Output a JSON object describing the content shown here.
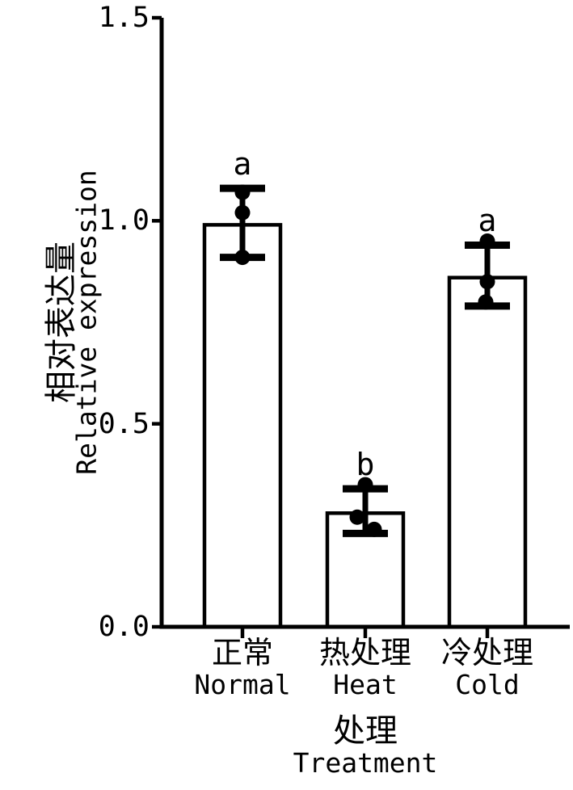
{
  "figure": {
    "background": "#ffffff",
    "ink": "#000000"
  },
  "chart_data": {
    "type": "bar",
    "title": "",
    "categories": [
      {
        "label_zh": "正常",
        "label_en": "Normal"
      },
      {
        "label_zh": "热处理",
        "label_en": "Heat"
      },
      {
        "label_zh": "冷处理",
        "label_en": "Cold"
      }
    ],
    "values": [
      0.99,
      0.28,
      0.86
    ],
    "error_low": [
      0.91,
      0.23,
      0.79
    ],
    "error_high": [
      1.08,
      0.34,
      0.94
    ],
    "points": [
      [
        {
          "v": 1.07,
          "dx": 0
        },
        {
          "v": 1.02,
          "dx": 0
        },
        {
          "v": 0.91,
          "dx": 0
        }
      ],
      [
        {
          "v": 0.35,
          "dx": 0
        },
        {
          "v": 0.27,
          "dx": -10
        },
        {
          "v": 0.24,
          "dx": 11
        }
      ],
      [
        {
          "v": 0.95,
          "dx": 0
        },
        {
          "v": 0.85,
          "dx": 0
        },
        {
          "v": 0.8,
          "dx": -2
        }
      ]
    ],
    "sig_letters": [
      "a",
      "b",
      "a"
    ],
    "ylabel_zh": "相对表达量",
    "ylabel_en": "Relative expression",
    "xlabel_zh": "处理",
    "xlabel_en": "Treatment",
    "yticks": [
      0,
      0.5,
      1,
      1.5
    ],
    "ytick_labels": [
      "0.0",
      "0.5",
      "1.0",
      "1.5"
    ],
    "ylim": [
      0,
      1.5
    ],
    "grid": false,
    "legend": "none",
    "bar_fill": "#ffffff",
    "bar_stroke": "#000000"
  }
}
